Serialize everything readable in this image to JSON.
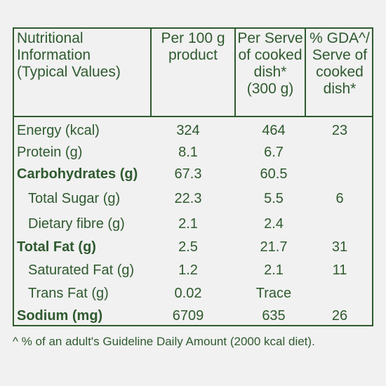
{
  "headers": {
    "nutrition": "Nutritional\nInformation\n(Typical Values)",
    "per100": "Per 100 g\nproduct",
    "perServe": "Per Serve\nof cooked\ndish*\n(300 g)",
    "gda": "% GDA^/\nServe of\ncooked\ndish*"
  },
  "rows": [
    {
      "label": "Energy (kcal)",
      "per100": "324",
      "perServe": "464",
      "gda": "23"
    },
    {
      "label": "Protein (g)",
      "per100": "8.1",
      "perServe": "6.7",
      "gda": ""
    },
    {
      "label": "Carbohydrates (g)",
      "per100": "67.3",
      "perServe": "60.5",
      "gda": ""
    },
    {
      "label": "Total Sugar (g)",
      "per100": "22.3",
      "perServe": "5.5",
      "gda": "6"
    },
    {
      "label": "Dietary fibre (g)",
      "per100": "2.1",
      "perServe": "2.4",
      "gda": ""
    },
    {
      "label": "Total Fat (g)",
      "per100": "2.5",
      "perServe": "21.7",
      "gda": "31"
    },
    {
      "label": "Saturated Fat (g)",
      "per100": "1.2",
      "perServe": "2.1",
      "gda": "11"
    },
    {
      "label": "Trans Fat (g)",
      "per100": "0.02",
      "perServe": "Trace",
      "gda": ""
    },
    {
      "label": "Sodium (mg)",
      "per100": "6709",
      "perServe": "635",
      "gda": "26"
    }
  ],
  "footnote": "^ % of an adult's Guideline Daily Amount (2000 kcal diet).",
  "colors": {
    "text": "#2f5a2f",
    "border": "#2f5a2f",
    "background": "#f1f1f1"
  }
}
